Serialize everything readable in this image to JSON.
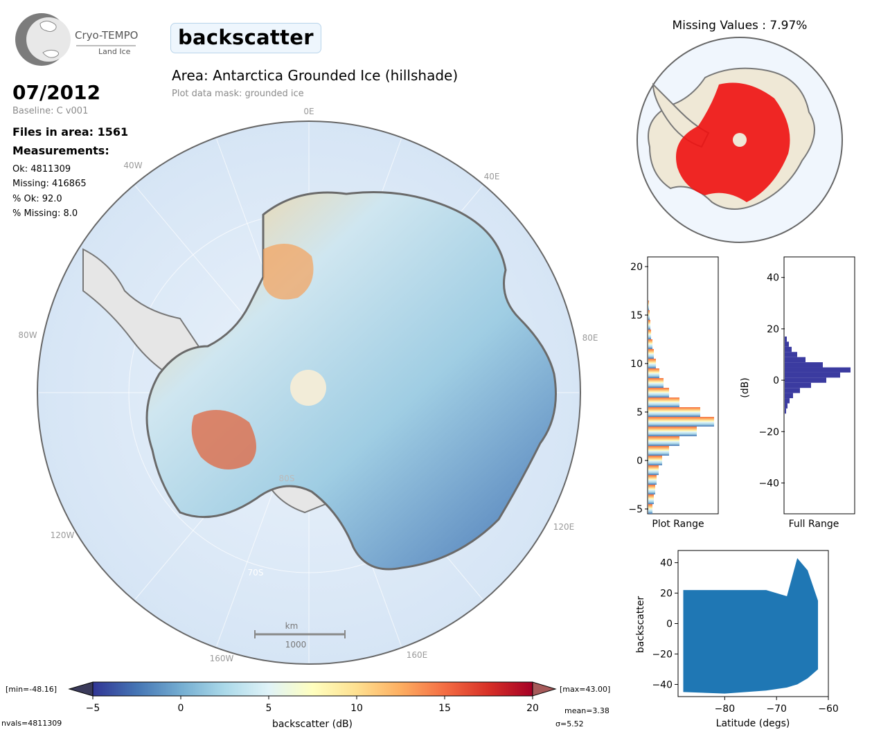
{
  "header": {
    "logo_main": "Cryo-TEMPO",
    "logo_sub": "Land Ice",
    "variable": "backscatter",
    "area": "Area: Antarctica Grounded Ice (hillshade)",
    "mask": "Plot data mask: grounded ice"
  },
  "info": {
    "date": "07/2012",
    "baseline": "Baseline: C v001",
    "files": "Files in area: 1561",
    "measurements": "Measurements:",
    "ok": "Ok: 4811309",
    "missing": "Missing: 416865",
    "pct_ok": "% Ok: 92.0",
    "pct_missing": "% Missing: 8.0"
  },
  "map": {
    "lon_labels": [
      "0E",
      "40W",
      "40E",
      "80W",
      "80E",
      "120W",
      "120E",
      "160W",
      "160E"
    ],
    "lat_labels": [
      "80S",
      "70S"
    ],
    "scale_unit": "km",
    "scale_value": "1000"
  },
  "missing_map": {
    "title": "Missing Values : 7.97%"
  },
  "colorbar": {
    "min_label": "[min=-48.16]",
    "max_label": "[max=43.00]",
    "ticks": [
      "−5",
      "0",
      "5",
      "10",
      "15",
      "20"
    ],
    "label": "backscatter (dB)",
    "nvals": "nvals=4811309",
    "mean": "mean=3.38",
    "sigma": "σ=5.52",
    "colors": [
      "#313695",
      "#4575b4",
      "#74add1",
      "#abd9e9",
      "#e0f3f8",
      "#ffffbf",
      "#fee090",
      "#fdae61",
      "#f46d43",
      "#d73027",
      "#a50026"
    ]
  },
  "chart_data": [
    {
      "type": "bar",
      "orientation": "horizontal",
      "xlabel": "Plot Range",
      "ylim": [
        -5.5,
        21
      ],
      "yticks": [
        "−5",
        "0",
        "5",
        "10",
        "15",
        "20"
      ],
      "bins": [
        {
          "y": -5,
          "count": 0.06
        },
        {
          "y": -4,
          "count": 0.08
        },
        {
          "y": -3,
          "count": 0.1
        },
        {
          "y": -2,
          "count": 0.12
        },
        {
          "y": -1,
          "count": 0.15
        },
        {
          "y": 0,
          "count": 0.2
        },
        {
          "y": 1,
          "count": 0.3
        },
        {
          "y": 2,
          "count": 0.45
        },
        {
          "y": 3,
          "count": 0.7
        },
        {
          "y": 4,
          "count": 0.95
        },
        {
          "y": 5,
          "count": 0.75
        },
        {
          "y": 6,
          "count": 0.45
        },
        {
          "y": 7,
          "count": 0.3
        },
        {
          "y": 8,
          "count": 0.22
        },
        {
          "y": 9,
          "count": 0.16
        },
        {
          "y": 10,
          "count": 0.11
        },
        {
          "y": 11,
          "count": 0.08
        },
        {
          "y": 12,
          "count": 0.06
        },
        {
          "y": 13,
          "count": 0.04
        },
        {
          "y": 14,
          "count": 0.03
        },
        {
          "y": 15,
          "count": 0.02
        },
        {
          "y": 16,
          "count": 0.01
        }
      ]
    },
    {
      "type": "bar",
      "orientation": "horizontal",
      "xlabel": "Full Range",
      "ylabel": "(dB)",
      "ylim": [
        -52,
        48
      ],
      "yticks": [
        "−40",
        "−20",
        "0",
        "20",
        "40"
      ],
      "color": "#3b3ba0",
      "bins": [
        {
          "y": -12,
          "count": 0.02
        },
        {
          "y": -10,
          "count": 0.04
        },
        {
          "y": -8,
          "count": 0.07
        },
        {
          "y": -6,
          "count": 0.12
        },
        {
          "y": -4,
          "count": 0.22
        },
        {
          "y": -2,
          "count": 0.38
        },
        {
          "y": 0,
          "count": 0.6
        },
        {
          "y": 2,
          "count": 0.8
        },
        {
          "y": 4,
          "count": 0.95
        },
        {
          "y": 6,
          "count": 0.55
        },
        {
          "y": 8,
          "count": 0.3
        },
        {
          "y": 10,
          "count": 0.18
        },
        {
          "y": 12,
          "count": 0.1
        },
        {
          "y": 14,
          "count": 0.06
        },
        {
          "y": 16,
          "count": 0.03
        }
      ]
    },
    {
      "type": "scatter",
      "xlabel": "Latitude (degs)",
      "ylabel": "backscatter",
      "xlim": [
        -89,
        -60
      ],
      "ylim": [
        -48,
        48
      ],
      "xticks": [
        "−80",
        "−70",
        "−60"
      ],
      "yticks": [
        "−40",
        "−20",
        "0",
        "20",
        "40"
      ],
      "color": "#1f77b4",
      "envelope": [
        {
          "x": -88,
          "low": -45,
          "high": 22
        },
        {
          "x": -80,
          "low": -46,
          "high": 22
        },
        {
          "x": -72,
          "low": -44,
          "high": 22
        },
        {
          "x": -68,
          "low": -42,
          "high": 18
        },
        {
          "x": -66,
          "low": -40,
          "high": 43
        },
        {
          "x": -64,
          "low": -36,
          "high": 35
        },
        {
          "x": -62,
          "low": -30,
          "high": 15
        }
      ]
    }
  ]
}
